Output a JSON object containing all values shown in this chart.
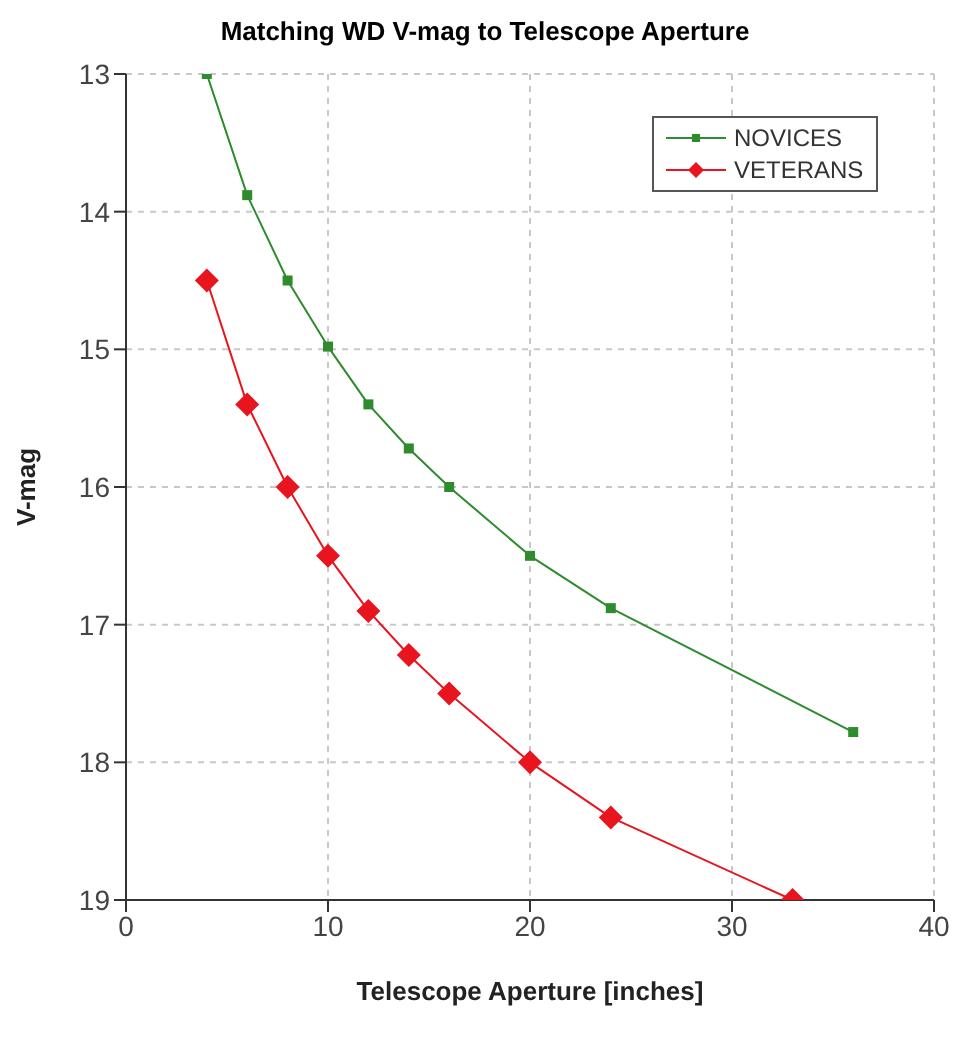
{
  "chart_data": {
    "type": "line",
    "title": "Matching WD V-mag to Telescope Aperture",
    "xlabel": "Telescope  Aperture [inches]",
    "ylabel": "V-mag",
    "xlim": [
      0,
      40
    ],
    "xticks": [
      0,
      10,
      20,
      30,
      40
    ],
    "ylim": [
      19,
      13
    ],
    "yticks": [
      13,
      14,
      15,
      16,
      17,
      18,
      19
    ],
    "grid": true,
    "legend": "top right",
    "series": [
      {
        "name": "NOVICES",
        "color": "#2e8b2e",
        "marker": "square",
        "x": [
          4,
          6,
          8,
          10,
          12,
          14,
          16,
          20,
          24,
          36
        ],
        "values": [
          13.0,
          13.88,
          14.5,
          14.98,
          15.4,
          15.72,
          16.0,
          16.5,
          16.88,
          17.78
        ]
      },
      {
        "name": "VETERANS",
        "color": "#e8141e",
        "marker": "diamond",
        "x": [
          4,
          6,
          8,
          10,
          12,
          14,
          16,
          20,
          24,
          33
        ],
        "values": [
          14.5,
          15.4,
          16.0,
          16.5,
          16.9,
          17.22,
          17.5,
          18.0,
          18.4,
          19.0
        ]
      }
    ]
  }
}
